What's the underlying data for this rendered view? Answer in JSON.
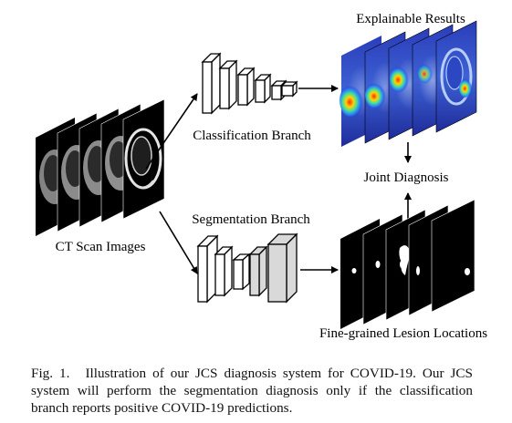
{
  "labels": {
    "ct_scan_images": "CT Scan Images",
    "classification_branch": "Classification Branch",
    "segmentation_branch": "Segmentation Branch",
    "explainable_results": "Explainable Results",
    "joint_diagnosis": "Joint Diagnosis",
    "fine_grained": "Fine-grained Lesion Locations"
  },
  "caption": {
    "fig_number": "Fig. 1.",
    "text": "Illustration of our JCS diagnosis system for COVID-19. Our JCS system will perform the segmentation diagnosis only if the classification branch reports positive COVID-19 predictions."
  }
}
